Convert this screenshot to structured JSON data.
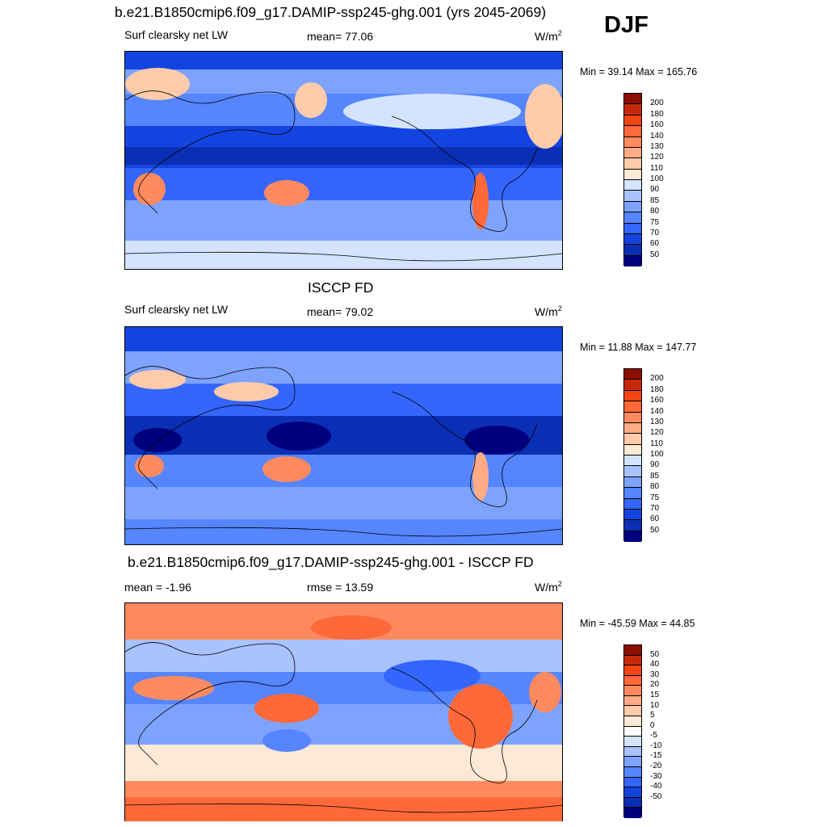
{
  "season": "DJF",
  "colors": {
    "abs": [
      "#00007f",
      "#0b2fb4",
      "#1444e0",
      "#3466ff",
      "#5585ff",
      "#7ea3ff",
      "#a9c3ff",
      "#d4e4ff",
      "#fde9d6",
      "#ffcbaa",
      "#ffab85",
      "#ff8a5f",
      "#ff6838",
      "#f44515",
      "#c72a0a",
      "#8c0f02"
    ],
    "diff": [
      "#00007f",
      "#0b2fb4",
      "#1444e0",
      "#3466ff",
      "#5585ff",
      "#7ea3ff",
      "#a9c3ff",
      "#d4e4ff",
      "#ffffff",
      "#fde9d6",
      "#ffcbaa",
      "#ffab85",
      "#ff8a5f",
      "#ff6838",
      "#f44515",
      "#c72a0a",
      "#8c0f02"
    ]
  },
  "chart_data": [
    {
      "type": "heatmap",
      "title": "b.e21.B1850cmip6.f09_g17.DAMIP-ssp245-ghg.001 (yrs 2045-2069)",
      "left_label": "Surf clearsky net LW",
      "center_label": "mean=  77.06",
      "units": "W/m",
      "units_sup": "2",
      "minmax": "Min =  39.14 Max = 165.76",
      "min": 39.14,
      "max": 165.76,
      "mean": 77.06,
      "levels": [
        "200",
        "180",
        "160",
        "140",
        "130",
        "120",
        "110",
        "100",
        "90",
        "85",
        "80",
        "75",
        "70",
        "60",
        "50"
      ]
    },
    {
      "type": "heatmap",
      "title": "ISCCP FD",
      "left_label": "Surf clearsky net LW",
      "center_label": "mean=  79.02",
      "units": "W/m",
      "units_sup": "2",
      "minmax": "Min =  11.88 Max = 147.77",
      "min": 11.88,
      "max": 147.77,
      "mean": 79.02,
      "levels": [
        "200",
        "180",
        "160",
        "140",
        "130",
        "120",
        "110",
        "100",
        "90",
        "85",
        "80",
        "75",
        "70",
        "60",
        "50"
      ]
    },
    {
      "type": "heatmap",
      "title": "b.e21.B1850cmip6.f09_g17.DAMIP-ssp245-ghg.001 - ISCCP FD",
      "left_label": "mean =  -1.96",
      "center_label": "rmse =  13.59",
      "units": "W/m",
      "units_sup": "2",
      "minmax": "Min = -45.59 Max =  44.85",
      "min": -45.59,
      "max": 44.85,
      "mean": -1.96,
      "rmse": 13.59,
      "levels": [
        "50",
        "40",
        "30",
        "20",
        "15",
        "10",
        "5",
        "0",
        "-5",
        "-10",
        "-15",
        "-20",
        "-30",
        "-40",
        "-50"
      ]
    }
  ]
}
